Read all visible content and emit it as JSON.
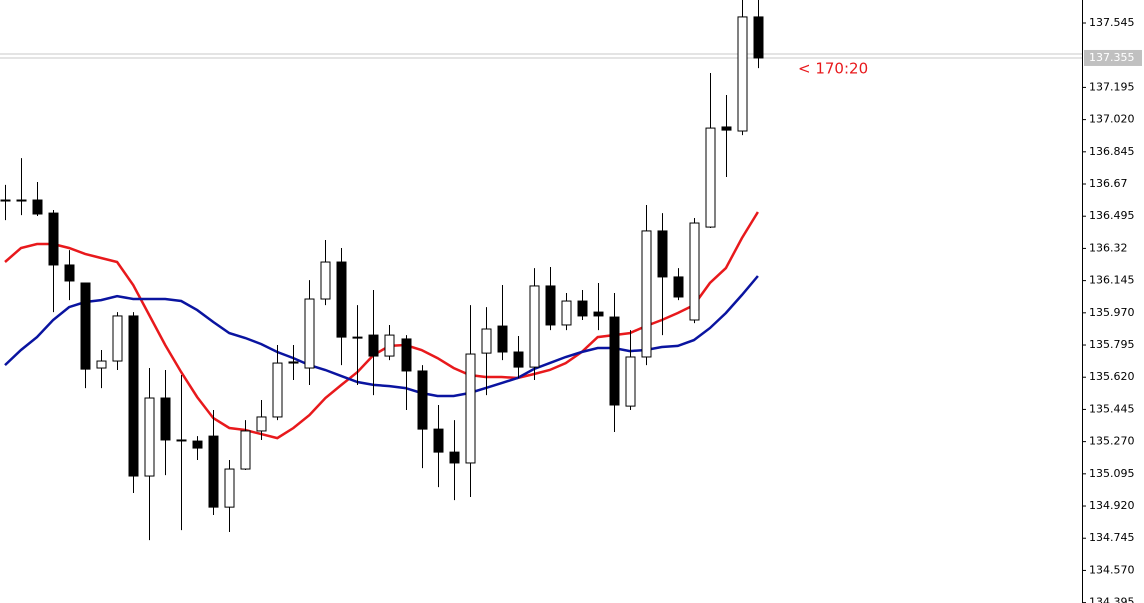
{
  "chart_data": {
    "type": "candlestick",
    "ylim": [
      134.393,
      137.67
    ],
    "yticks": [
      137.545,
      137.195,
      {
        "value": 137.02,
        "label": "137.020"
      },
      136.845,
      136.67,
      136.495,
      136.32,
      136.145,
      {
        "value": 135.97,
        "label": "135.970"
      },
      135.795,
      {
        "value": 135.62,
        "label": "135.620"
      },
      135.445,
      {
        "value": 135.27,
        "label": "135.270"
      },
      135.095,
      {
        "value": 134.92,
        "label": "134.920"
      },
      134.745,
      {
        "value": 134.57,
        "label": "134.570"
      },
      134.395
    ],
    "up_color": "#ffffff",
    "down_color": "#000000",
    "candles": {
      "open": [
        136.583,
        136.583,
        136.583,
        136.512,
        136.23,
        136.132,
        135.67,
        135.708,
        135.953,
        135.083,
        135.507,
        135.279,
        135.273,
        135.3,
        134.914,
        135.121,
        135.328,
        135.404,
        135.703,
        135.67,
        136.045,
        136.246,
        135.838,
        135.849,
        135.735,
        135.828,
        135.654,
        135.338,
        135.213,
        135.154,
        135.751,
        135.898,
        135.757,
        135.675,
        136.116,
        135.904,
        136.034,
        135.974,
        135.947,
        135.463,
        135.73,
        136.415,
        136.165,
        135.931,
        136.436,
        136.98,
        136.958,
        137.578
      ],
      "high": [
        136.665,
        136.811,
        136.681,
        136.529,
        136.311,
        136.132,
        135.768,
        135.974,
        135.974,
        135.67,
        135.659,
        135.632,
        135.3,
        135.442,
        135.17,
        135.387,
        135.496,
        135.795,
        135.795,
        136.148,
        136.366,
        136.322,
        136.012,
        136.094,
        135.904,
        135.849,
        135.686,
        135.469,
        135.387,
        136.012,
        136.001,
        136.121,
        135.844,
        136.213,
        136.219,
        136.078,
        136.094,
        136.132,
        136.078,
        135.876,
        136.556,
        136.512,
        136.213,
        136.485,
        137.273,
        137.154,
        137.67,
        137.67
      ],
      "low": [
        136.474,
        136.501,
        136.496,
        135.974,
        136.039,
        135.561,
        135.561,
        135.659,
        134.991,
        134.735,
        135.088,
        134.789,
        135.17,
        134.871,
        134.779,
        135.116,
        135.279,
        135.387,
        135.605,
        135.578,
        136.012,
        135.686,
        135.578,
        135.523,
        135.713,
        135.442,
        135.126,
        135.023,
        134.952,
        134.969,
        135.523,
        135.713,
        135.616,
        135.605,
        135.876,
        135.876,
        135.931,
        135.876,
        135.322,
        135.442,
        135.686,
        135.849,
        136.039,
        135.914,
        136.431,
        136.708,
        136.936,
        137.3
      ],
      "close": [
        136.583,
        136.583,
        136.507,
        136.23,
        136.143,
        135.664,
        135.708,
        135.953,
        135.083,
        135.507,
        135.279,
        135.279,
        135.235,
        134.914,
        135.121,
        135.328,
        135.404,
        135.697,
        135.697,
        136.045,
        136.246,
        135.838,
        135.838,
        135.735,
        135.849,
        135.654,
        135.338,
        135.213,
        135.154,
        135.746,
        135.882,
        135.757,
        135.675,
        136.116,
        135.904,
        136.034,
        135.953,
        135.953,
        135.469,
        135.73,
        136.415,
        136.165,
        136.056,
        136.458,
        136.974,
        136.963,
        137.578,
        137.355
      ]
    },
    "moving_averages": [
      {
        "color": "#e8191c",
        "values": [
          136.246,
          136.322,
          136.344,
          136.344,
          136.322,
          136.29,
          136.268,
          136.246,
          136.121,
          135.958,
          135.795,
          135.648,
          135.512,
          135.398,
          135.344,
          135.333,
          135.311,
          135.289,
          135.344,
          135.414,
          135.507,
          135.578,
          135.648,
          135.741,
          135.79,
          135.795,
          135.768,
          135.724,
          135.67,
          135.632,
          135.621,
          135.621,
          135.616,
          135.637,
          135.659,
          135.697,
          135.757,
          135.838,
          135.849,
          135.86,
          135.898,
          135.931,
          135.969,
          136.012,
          136.132,
          136.213,
          136.376,
          136.518
        ]
      },
      {
        "color": "#0a14a0",
        "values": [
          135.686,
          135.768,
          135.838,
          135.931,
          136.001,
          136.029,
          136.039,
          136.061,
          136.045,
          136.045,
          136.045,
          136.034,
          135.985,
          135.92,
          135.86,
          135.833,
          135.8,
          135.757,
          135.724,
          135.686,
          135.659,
          135.626,
          135.594,
          135.578,
          135.572,
          135.561,
          135.534,
          135.518,
          135.518,
          135.534,
          135.561,
          135.588,
          135.616,
          135.664,
          135.697,
          135.73,
          135.757,
          135.779,
          135.779,
          135.762,
          135.768,
          135.784,
          135.79,
          135.822,
          135.887,
          135.969,
          136.067,
          136.17
        ]
      }
    ],
    "current_price": 137.355,
    "annotation": "< 170:20"
  }
}
